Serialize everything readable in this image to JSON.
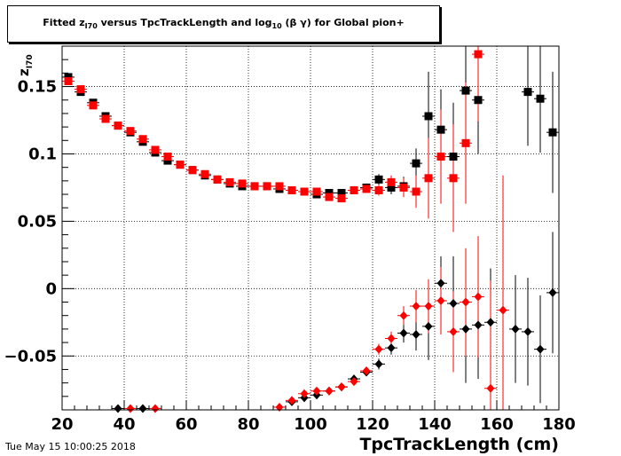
{
  "title_parts": {
    "pre": "Fitted  z",
    "sub1": "I70",
    "mid": "  versus TpcTrackLength and log",
    "sub2": "10",
    "post": " (β γ) for Global pion+"
  },
  "timestamp": "Tue May 15 10:00:25 2018",
  "chart_data": {
    "type": "scatter",
    "xlabel": "TpcTrackLength (cm)",
    "ylabel_main": "z",
    "ylabel_sub": "I70",
    "xlim": [
      20,
      180
    ],
    "ylim": [
      -0.09,
      0.18
    ],
    "x_ticks": [
      20,
      40,
      60,
      80,
      100,
      120,
      140,
      160,
      180
    ],
    "y_ticks": [
      -0.05,
      0,
      0.05,
      0.1,
      0.15
    ],
    "x_tick_labels": [
      "20",
      "40",
      "60",
      "80",
      "100",
      "120",
      "140",
      "160",
      "180"
    ],
    "y_tick_labels": [
      "−0.05",
      "0",
      "0.05",
      "0.1",
      "0.15"
    ],
    "grid": true,
    "series": [
      {
        "marker": "square",
        "color": "#000000",
        "points": [
          {
            "x": 22,
            "y": 0.157,
            "e": 0.002
          },
          {
            "x": 26,
            "y": 0.146,
            "e": 0.002
          },
          {
            "x": 30,
            "y": 0.138,
            "e": 0.002
          },
          {
            "x": 34,
            "y": 0.128,
            "e": 0.002
          },
          {
            "x": 38,
            "y": 0.121,
            "e": 0.002
          },
          {
            "x": 42,
            "y": 0.116,
            "e": 0.002
          },
          {
            "x": 46,
            "y": 0.109,
            "e": 0.002
          },
          {
            "x": 50,
            "y": 0.101,
            "e": 0.002
          },
          {
            "x": 54,
            "y": 0.095,
            "e": 0.002
          },
          {
            "x": 58,
            "y": 0.092,
            "e": 0.002
          },
          {
            "x": 62,
            "y": 0.088,
            "e": 0.002
          },
          {
            "x": 66,
            "y": 0.084,
            "e": 0.002
          },
          {
            "x": 70,
            "y": 0.081,
            "e": 0.002
          },
          {
            "x": 74,
            "y": 0.078,
            "e": 0.002
          },
          {
            "x": 78,
            "y": 0.076,
            "e": 0.002
          },
          {
            "x": 82,
            "y": 0.076,
            "e": 0.002
          },
          {
            "x": 86,
            "y": 0.076,
            "e": 0.002
          },
          {
            "x": 90,
            "y": 0.074,
            "e": 0.002
          },
          {
            "x": 94,
            "y": 0.073,
            "e": 0.002
          },
          {
            "x": 98,
            "y": 0.072,
            "e": 0.002
          },
          {
            "x": 102,
            "y": 0.07,
            "e": 0.002
          },
          {
            "x": 106,
            "y": 0.071,
            "e": 0.002
          },
          {
            "x": 110,
            "y": 0.071,
            "e": 0.003
          },
          {
            "x": 114,
            "y": 0.073,
            "e": 0.003
          },
          {
            "x": 118,
            "y": 0.075,
            "e": 0.003
          },
          {
            "x": 122,
            "y": 0.081,
            "e": 0.004
          },
          {
            "x": 126,
            "y": 0.075,
            "e": 0.005
          },
          {
            "x": 130,
            "y": 0.076,
            "e": 0.007
          },
          {
            "x": 134,
            "y": 0.093,
            "e": 0.011
          },
          {
            "x": 138,
            "y": 0.128,
            "e": 0.033
          },
          {
            "x": 142,
            "y": 0.118,
            "e": 0.03
          },
          {
            "x": 146,
            "y": 0.098,
            "e": 0.04
          },
          {
            "x": 150,
            "y": 0.147,
            "e": 0.04
          },
          {
            "x": 154,
            "y": 0.14,
            "e": 0.04
          },
          {
            "x": 170,
            "y": 0.146,
            "e": 0.04
          },
          {
            "x": 174,
            "y": 0.141,
            "e": 0.04
          },
          {
            "x": 178,
            "y": 0.116,
            "e": 0.045
          }
        ]
      },
      {
        "marker": "square",
        "color": "#ff0000",
        "points": [
          {
            "x": 22,
            "y": 0.154,
            "e": 0.002
          },
          {
            "x": 26,
            "y": 0.148,
            "e": 0.002
          },
          {
            "x": 30,
            "y": 0.136,
            "e": 0.002
          },
          {
            "x": 34,
            "y": 0.126,
            "e": 0.002
          },
          {
            "x": 38,
            "y": 0.121,
            "e": 0.002
          },
          {
            "x": 42,
            "y": 0.117,
            "e": 0.002
          },
          {
            "x": 46,
            "y": 0.111,
            "e": 0.002
          },
          {
            "x": 50,
            "y": 0.103,
            "e": 0.002
          },
          {
            "x": 54,
            "y": 0.098,
            "e": 0.002
          },
          {
            "x": 58,
            "y": 0.092,
            "e": 0.002
          },
          {
            "x": 62,
            "y": 0.088,
            "e": 0.002
          },
          {
            "x": 66,
            "y": 0.085,
            "e": 0.002
          },
          {
            "x": 70,
            "y": 0.081,
            "e": 0.002
          },
          {
            "x": 74,
            "y": 0.079,
            "e": 0.002
          },
          {
            "x": 78,
            "y": 0.078,
            "e": 0.002
          },
          {
            "x": 82,
            "y": 0.076,
            "e": 0.002
          },
          {
            "x": 86,
            "y": 0.076,
            "e": 0.002
          },
          {
            "x": 90,
            "y": 0.076,
            "e": 0.002
          },
          {
            "x": 94,
            "y": 0.073,
            "e": 0.002
          },
          {
            "x": 98,
            "y": 0.072,
            "e": 0.002
          },
          {
            "x": 102,
            "y": 0.072,
            "e": 0.002
          },
          {
            "x": 106,
            "y": 0.068,
            "e": 0.002
          },
          {
            "x": 110,
            "y": 0.067,
            "e": 0.003
          },
          {
            "x": 114,
            "y": 0.073,
            "e": 0.003
          },
          {
            "x": 118,
            "y": 0.074,
            "e": 0.003
          },
          {
            "x": 122,
            "y": 0.073,
            "e": 0.004
          },
          {
            "x": 126,
            "y": 0.079,
            "e": 0.005
          },
          {
            "x": 130,
            "y": 0.075,
            "e": 0.007
          },
          {
            "x": 134,
            "y": 0.072,
            "e": 0.012
          },
          {
            "x": 138,
            "y": 0.082,
            "e": 0.03
          },
          {
            "x": 142,
            "y": 0.098,
            "e": 0.035
          },
          {
            "x": 146,
            "y": 0.082,
            "e": 0.04
          },
          {
            "x": 150,
            "y": 0.108,
            "e": 0.045
          },
          {
            "x": 154,
            "y": 0.174,
            "e": 0.05
          }
        ]
      },
      {
        "marker": "diamond",
        "color": "#000000",
        "points": [
          {
            "x": 38,
            "y": -0.089,
            "e": 0.002
          },
          {
            "x": 46,
            "y": -0.089,
            "e": 0.002
          },
          {
            "x": 94,
            "y": -0.084,
            "e": 0.002
          },
          {
            "x": 98,
            "y": -0.081,
            "e": 0.002
          },
          {
            "x": 102,
            "y": -0.079,
            "e": 0.002
          },
          {
            "x": 106,
            "y": -0.076,
            "e": 0.002
          },
          {
            "x": 110,
            "y": -0.073,
            "e": 0.003
          },
          {
            "x": 114,
            "y": -0.067,
            "e": 0.003
          },
          {
            "x": 118,
            "y": -0.062,
            "e": 0.003
          },
          {
            "x": 122,
            "y": -0.056,
            "e": 0.004
          },
          {
            "x": 126,
            "y": -0.044,
            "e": 0.005
          },
          {
            "x": 130,
            "y": -0.033,
            "e": 0.007
          },
          {
            "x": 134,
            "y": -0.034,
            "e": 0.012
          },
          {
            "x": 138,
            "y": -0.028,
            "e": 0.025
          },
          {
            "x": 142,
            "y": 0.004,
            "e": 0.02
          },
          {
            "x": 146,
            "y": -0.011,
            "e": 0.035
          },
          {
            "x": 150,
            "y": -0.03,
            "e": 0.04
          },
          {
            "x": 154,
            "y": -0.027,
            "e": 0.04
          },
          {
            "x": 158,
            "y": -0.025,
            "e": 0.04
          },
          {
            "x": 166,
            "y": -0.03,
            "e": 0.04
          },
          {
            "x": 170,
            "y": -0.032,
            "e": 0.04
          },
          {
            "x": 174,
            "y": -0.045,
            "e": 0.04
          },
          {
            "x": 178,
            "y": -0.003,
            "e": 0.045
          }
        ]
      },
      {
        "marker": "diamond",
        "color": "#ff0000",
        "points": [
          {
            "x": 42,
            "y": -0.089,
            "e": 0.002
          },
          {
            "x": 50,
            "y": -0.089,
            "e": 0.002
          },
          {
            "x": 90,
            "y": -0.088,
            "e": 0.002
          },
          {
            "x": 94,
            "y": -0.083,
            "e": 0.002
          },
          {
            "x": 98,
            "y": -0.078,
            "e": 0.002
          },
          {
            "x": 102,
            "y": -0.076,
            "e": 0.002
          },
          {
            "x": 106,
            "y": -0.076,
            "e": 0.002
          },
          {
            "x": 110,
            "y": -0.073,
            "e": 0.003
          },
          {
            "x": 114,
            "y": -0.069,
            "e": 0.003
          },
          {
            "x": 118,
            "y": -0.061,
            "e": 0.003
          },
          {
            "x": 122,
            "y": -0.045,
            "e": 0.004
          },
          {
            "x": 126,
            "y": -0.037,
            "e": 0.005
          },
          {
            "x": 130,
            "y": -0.02,
            "e": 0.007
          },
          {
            "x": 134,
            "y": -0.013,
            "e": 0.012
          },
          {
            "x": 138,
            "y": -0.013,
            "e": 0.02
          },
          {
            "x": 142,
            "y": -0.009,
            "e": 0.025
          },
          {
            "x": 146,
            "y": -0.032,
            "e": 0.03
          },
          {
            "x": 150,
            "y": -0.01,
            "e": 0.04
          },
          {
            "x": 154,
            "y": -0.006,
            "e": 0.045
          },
          {
            "x": 158,
            "y": -0.074,
            "e": 0.08
          },
          {
            "x": 162,
            "y": -0.016,
            "e": 0.1
          }
        ]
      }
    ]
  }
}
